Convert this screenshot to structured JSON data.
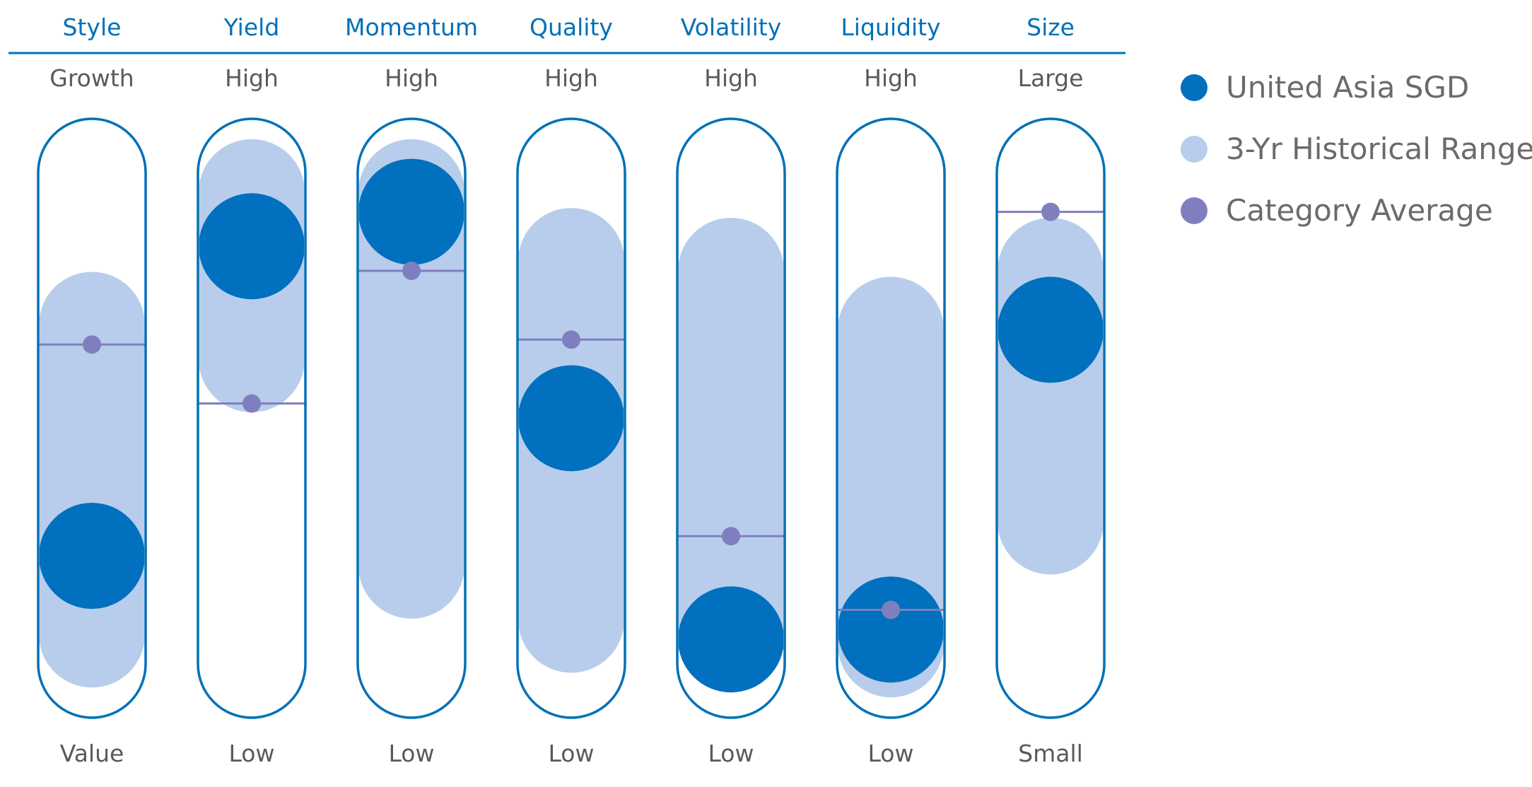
{
  "legend": [
    {
      "label": "United Asia SGD",
      "color": "#0070bf",
      "icon": "fund-dot-icon"
    },
    {
      "label": "3-Yr Historical Range",
      "color": "#b8cdeb",
      "icon": "range-dot-icon"
    },
    {
      "label": "Category Average",
      "color": "#7f7fbf",
      "icon": "category-average-dot-icon"
    }
  ],
  "colors": {
    "header": "#0070b8",
    "outline": "#0070b8",
    "fund": "#0070bf",
    "range": "#b8cdeb",
    "category": "#7f7fbf",
    "tick": "#5a5a5a"
  },
  "chart_data": {
    "type": "factor-profile",
    "scale": [
      0,
      100
    ],
    "series_names": [
      "United Asia SGD",
      "3-Yr Historical Range",
      "Category Average"
    ],
    "factors": [
      {
        "name": "Style",
        "high_label": "Growth",
        "low_label": "Value",
        "fund": 22,
        "range": [
          6,
          69
        ],
        "category": 65
      },
      {
        "name": "Yield",
        "high_label": "High",
        "low_label": "Low",
        "fund": 85,
        "range": [
          62,
          96
        ],
        "category": 53
      },
      {
        "name": "Momentum",
        "high_label": "High",
        "low_label": "Low",
        "fund": 92,
        "range": [
          20,
          96
        ],
        "category": 80
      },
      {
        "name": "Quality",
        "high_label": "High",
        "low_label": "Low",
        "fund": 50,
        "range": [
          9,
          82
        ],
        "category": 66
      },
      {
        "name": "Volatility",
        "high_label": "High",
        "low_label": "Low",
        "fund": 5,
        "range": [
          6,
          80
        ],
        "category": 26
      },
      {
        "name": "Liquidity",
        "high_label": "High",
        "low_label": "Low",
        "fund": 7,
        "range": [
          4,
          68
        ],
        "category": 11
      },
      {
        "name": "Size",
        "high_label": "Large",
        "low_label": "Small",
        "fund": 68,
        "range": [
          29,
          80
        ],
        "category": 92
      }
    ]
  }
}
